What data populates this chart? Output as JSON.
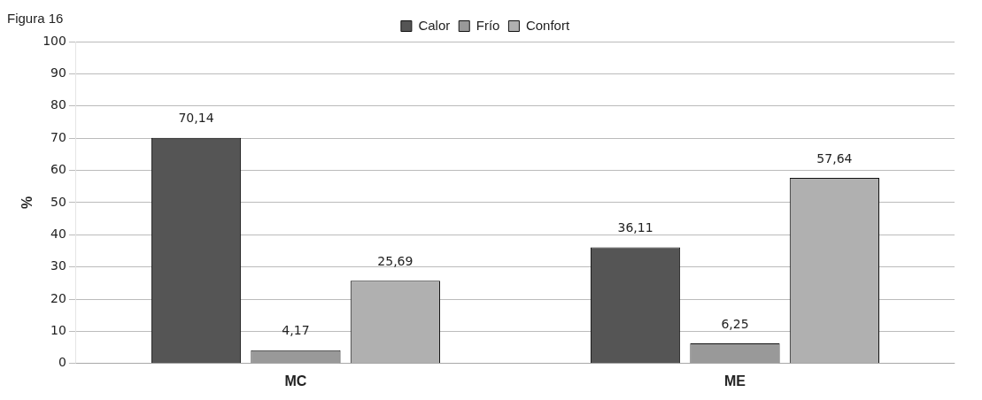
{
  "chart_data": {
    "type": "bar",
    "ylabel": "%",
    "annotations": [
      "Figura 16"
    ],
    "categories": [
      "MC",
      "ME"
    ],
    "series": [
      {
        "name": "Calor",
        "color": "#555555",
        "values": [
          70.14,
          36.11
        ],
        "value_labels": [
          "70,14",
          "36,11"
        ]
      },
      {
        "name": "Frío",
        "color": "#999999",
        "values": [
          4.17,
          6.25
        ],
        "value_labels": [
          "4,17",
          "6,25"
        ]
      },
      {
        "name": "Confort",
        "color": "#b0b0b0",
        "values": [
          25.69,
          57.64
        ],
        "value_labels": [
          "25,69",
          "57,64"
        ]
      }
    ],
    "ylim": [
      0,
      100
    ],
    "yticks": [
      0,
      10,
      20,
      30,
      40,
      50,
      60,
      70,
      80,
      90,
      100
    ],
    "grid": "y",
    "legend": "top"
  }
}
